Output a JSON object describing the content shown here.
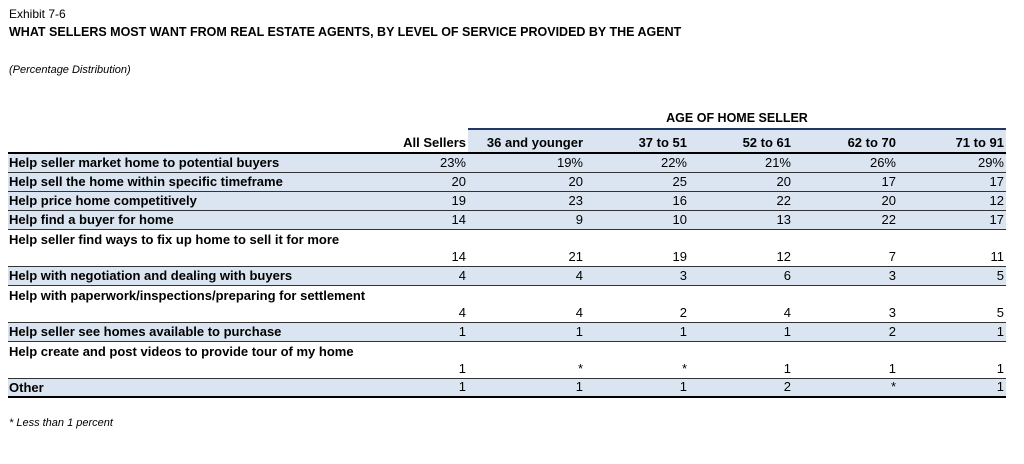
{
  "exhibit": "Exhibit 7-6",
  "title": "WHAT SELLERS MOST WANT FROM REAL ESTATE AGENTS, BY LEVEL OF SERVICE PROVIDED BY THE AGENT",
  "subtitle": "(Percentage Distribution)",
  "table": {
    "group_header": "AGE OF HOME SELLER",
    "columns": [
      "All Sellers",
      "36 and younger",
      "37 to 51",
      "52 to 61",
      "62 to 70",
      "71 to 91"
    ],
    "rows": [
      {
        "label": "Help seller market home to potential buyers",
        "values": [
          "23%",
          "19%",
          "22%",
          "21%",
          "26%",
          "29%"
        ]
      },
      {
        "label": "Help sell the home within specific timeframe",
        "values": [
          "20",
          "20",
          "25",
          "20",
          "17",
          "17"
        ]
      },
      {
        "label": "Help price home competitively",
        "values": [
          "19",
          "23",
          "16",
          "22",
          "20",
          "12"
        ]
      },
      {
        "label": "Help find a buyer for home",
        "values": [
          "14",
          "9",
          "10",
          "13",
          "22",
          "17"
        ]
      },
      {
        "label": "Help seller find ways to fix up home to sell it for more",
        "values": [
          "14",
          "21",
          "19",
          "12",
          "7",
          "11"
        ]
      },
      {
        "label": "Help with negotiation and dealing with buyers",
        "values": [
          "4",
          "4",
          "3",
          "6",
          "3",
          "5"
        ]
      },
      {
        "label": "Help with paperwork/inspections/preparing for settlement",
        "values": [
          "4",
          "4",
          "2",
          "4",
          "3",
          "5"
        ]
      },
      {
        "label": "Help seller see homes available to purchase",
        "values": [
          "1",
          "1",
          "1",
          "1",
          "2",
          "1"
        ]
      },
      {
        "label": "Help create and post videos to provide tour of my home",
        "values": [
          "1",
          "*",
          "*",
          "1",
          "1",
          "1"
        ]
      },
      {
        "label": "Other",
        "values": [
          "1",
          "1",
          "1",
          "2",
          "*",
          "1"
        ]
      }
    ]
  },
  "footnote": "* Less than 1 percent"
}
